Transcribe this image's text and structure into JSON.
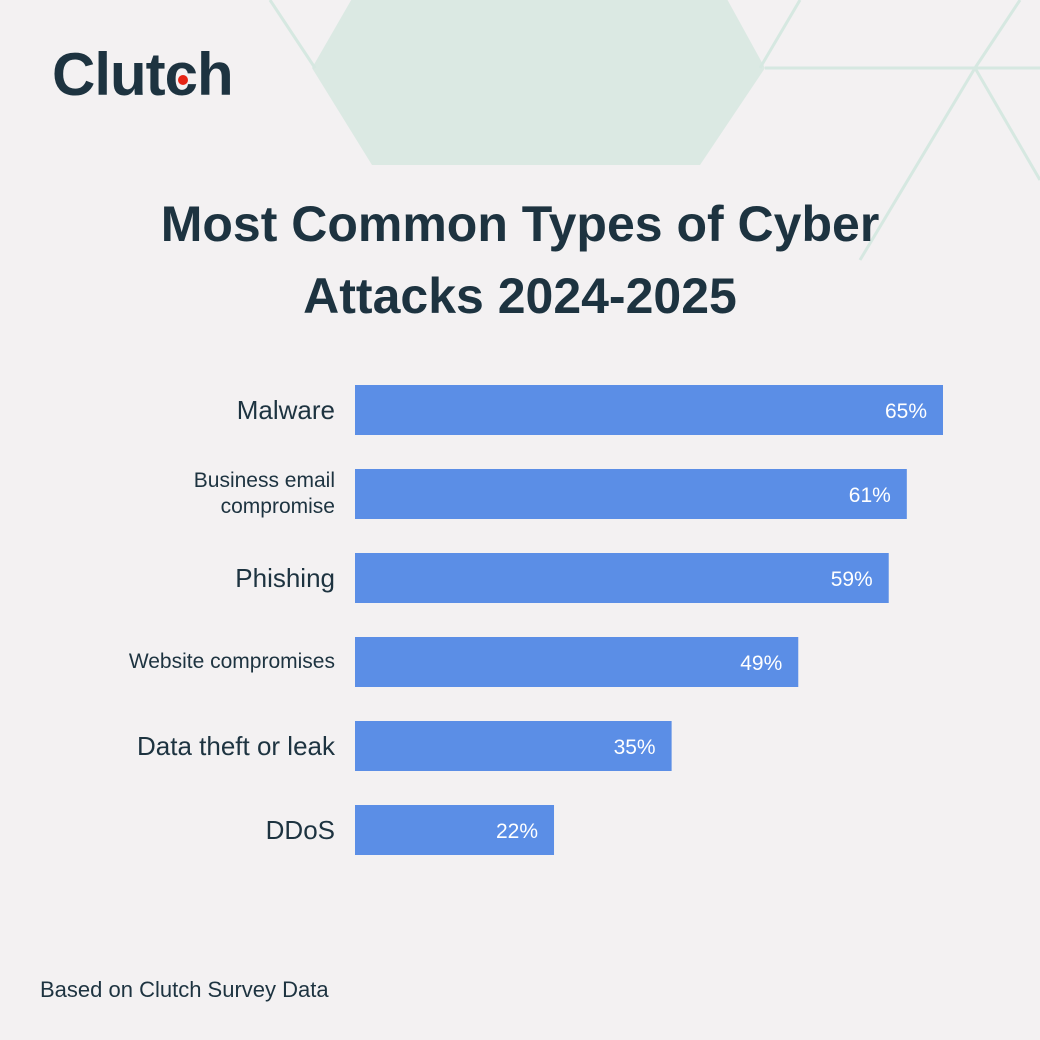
{
  "logo": "Clutch",
  "chart_data": {
    "type": "bar",
    "orientation": "horizontal",
    "title": "Most Common Types of Cyber Attacks 2024-2025",
    "categories": [
      "Malware",
      "Business email compromise",
      "Phishing",
      "Website compromises",
      "Data theft or leak",
      "DDoS"
    ],
    "values": [
      65,
      61,
      59,
      49,
      35,
      22
    ],
    "value_labels": [
      "65%",
      "61%",
      "59%",
      "49%",
      "35%",
      "22%"
    ],
    "color": "#5b8ee6"
  },
  "footer": "Based on Clutch Survey Data"
}
